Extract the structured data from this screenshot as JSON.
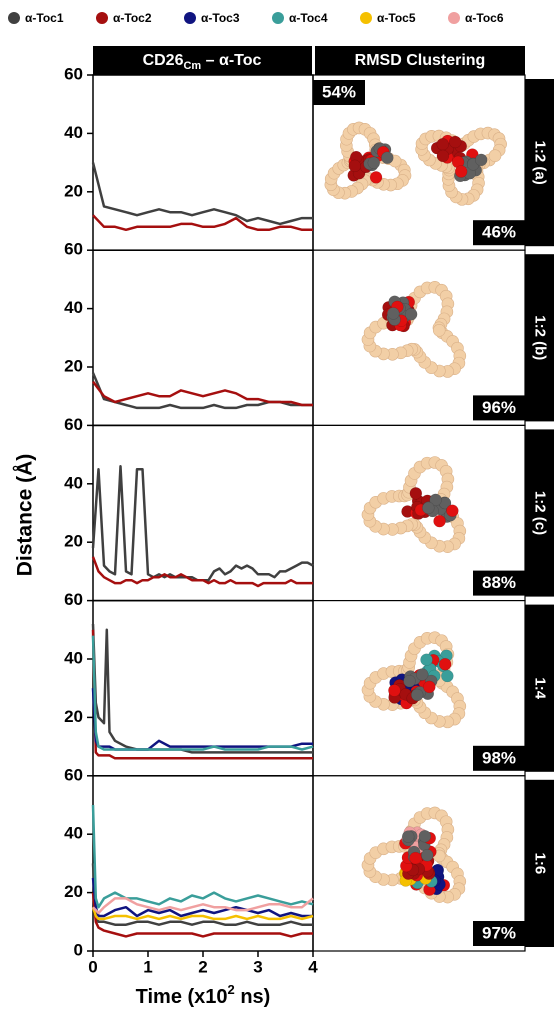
{
  "figure": {
    "header_left": {
      "main": "CD26",
      "sub": "Cm",
      "rest": " – α-Toc"
    },
    "header_right": "RMSD Clustering",
    "ylabel": "Distance (Å)",
    "xlabel": {
      "main": "Time (x10",
      "sup": "2",
      "rest": " ns)"
    }
  },
  "chart_data": [
    {
      "type": "line",
      "ratio": "1:2 (a)",
      "clusters": [
        "54%",
        "46%"
      ],
      "x": [
        0,
        0.2,
        0.4,
        0.6,
        0.8,
        1.0,
        1.2,
        1.4,
        1.6,
        1.8,
        2.0,
        2.2,
        2.4,
        2.6,
        2.8,
        3.0,
        3.2,
        3.4,
        3.6,
        3.8,
        4.0
      ],
      "xlim": [
        0,
        4
      ],
      "ylim": [
        0,
        60
      ],
      "yticks": [
        20,
        40,
        60
      ],
      "series": [
        {
          "name": "α-Toc1",
          "color": "#404040",
          "values": [
            30,
            15,
            14,
            13,
            12,
            13,
            14,
            13,
            13,
            12,
            13,
            14,
            13,
            12,
            10,
            11,
            10,
            9,
            10,
            11,
            11
          ]
        },
        {
          "name": "α-Toc2",
          "color": "#a50f0f",
          "values": [
            12,
            8,
            8,
            7,
            8,
            8,
            8,
            8,
            9,
            9,
            8,
            8,
            9,
            11,
            8,
            7,
            7,
            8,
            8,
            7,
            7
          ]
        }
      ]
    },
    {
      "type": "line",
      "ratio": "1:2 (b)",
      "clusters": [
        "96%"
      ],
      "x": [
        0,
        0.2,
        0.4,
        0.6,
        0.8,
        1.0,
        1.2,
        1.4,
        1.6,
        1.8,
        2.0,
        2.2,
        2.4,
        2.6,
        2.8,
        3.0,
        3.2,
        3.4,
        3.6,
        3.8,
        4.0
      ],
      "xlim": [
        0,
        4
      ],
      "ylim": [
        0,
        60
      ],
      "yticks": [
        20,
        40,
        60
      ],
      "series": [
        {
          "name": "α-Toc1",
          "color": "#404040",
          "values": [
            18,
            9,
            8,
            7,
            6,
            6,
            6,
            7,
            6,
            6,
            6,
            7,
            6,
            6,
            7,
            7,
            8,
            8,
            7,
            7,
            7
          ]
        },
        {
          "name": "α-Toc2",
          "color": "#a50f0f",
          "values": [
            15,
            10,
            8,
            9,
            10,
            11,
            10,
            10,
            12,
            11,
            10,
            11,
            12,
            11,
            9,
            9,
            8,
            8,
            8,
            7,
            7
          ]
        }
      ]
    },
    {
      "type": "line",
      "ratio": "1:2 (c)",
      "clusters": [
        "88%"
      ],
      "x": [
        0,
        0.1,
        0.2,
        0.3,
        0.4,
        0.5,
        0.6,
        0.7,
        0.8,
        0.9,
        1.0,
        1.1,
        1.2,
        1.3,
        1.4,
        1.5,
        1.6,
        1.7,
        1.8,
        1.9,
        2.0,
        2.1,
        2.2,
        2.3,
        2.4,
        2.5,
        2.6,
        2.7,
        2.8,
        2.9,
        3.0,
        3.1,
        3.2,
        3.3,
        3.4,
        3.5,
        3.6,
        3.7,
        3.8,
        3.9,
        4.0
      ],
      "xlim": [
        0,
        4
      ],
      "ylim": [
        0,
        60
      ],
      "yticks": [
        20,
        40,
        60
      ],
      "series": [
        {
          "name": "α-Toc1",
          "color": "#404040",
          "values": [
            18,
            45,
            12,
            10,
            9,
            46,
            10,
            9,
            45,
            45,
            9,
            8,
            9,
            8,
            9,
            8,
            8,
            8,
            8,
            7,
            7,
            7,
            10,
            11,
            9,
            10,
            12,
            11,
            12,
            11,
            9,
            9,
            9,
            8,
            10,
            10,
            11,
            12,
            13,
            13,
            12
          ]
        },
        {
          "name": "α-Toc2",
          "color": "#a50f0f",
          "values": [
            15,
            10,
            8,
            7,
            6,
            6,
            7,
            7,
            6,
            7,
            7,
            8,
            8,
            9,
            8,
            8,
            9,
            8,
            7,
            7,
            7,
            6,
            7,
            6,
            6,
            7,
            6,
            6,
            6,
            6,
            5,
            6,
            6,
            6,
            6,
            6,
            7,
            6,
            6,
            6,
            6
          ]
        }
      ]
    },
    {
      "type": "line",
      "ratio": "1:4",
      "clusters": [
        "98%"
      ],
      "x": [
        0,
        0.05,
        0.1,
        0.2,
        0.25,
        0.3,
        0.4,
        0.6,
        0.8,
        1.0,
        1.2,
        1.4,
        1.6,
        1.8,
        2.0,
        2.2,
        2.4,
        2.6,
        2.8,
        3.0,
        3.2,
        3.4,
        3.6,
        3.8,
        4.0
      ],
      "xlim": [
        0,
        4
      ],
      "ylim": [
        0,
        60
      ],
      "yticks": [
        20,
        40,
        60
      ],
      "series": [
        {
          "name": "α-Toc1",
          "color": "#404040",
          "values": [
            52,
            25,
            20,
            18,
            50,
            15,
            12,
            10,
            9,
            9,
            9,
            9,
            9,
            8,
            8,
            8,
            8,
            8,
            8,
            8,
            8,
            8,
            8,
            8,
            8
          ]
        },
        {
          "name": "α-Toc2",
          "color": "#a50f0f",
          "values": [
            50,
            8,
            7,
            7,
            7,
            7,
            6,
            6,
            6,
            6,
            6,
            6,
            6,
            6,
            6,
            6,
            6,
            6,
            6,
            6,
            6,
            6,
            6,
            6,
            6
          ]
        },
        {
          "name": "α-Toc3",
          "color": "#101480",
          "values": [
            30,
            12,
            10,
            10,
            10,
            10,
            9,
            9,
            9,
            9,
            12,
            10,
            10,
            10,
            10,
            10,
            10,
            10,
            10,
            10,
            10,
            10,
            10,
            11,
            11
          ]
        },
        {
          "name": "α-Toc4",
          "color": "#3a9e9a",
          "values": [
            48,
            15,
            10,
            9,
            9,
            9,
            9,
            9,
            9,
            9,
            9,
            9,
            9,
            9,
            9,
            10,
            9,
            9,
            9,
            9,
            10,
            10,
            10,
            9,
            10
          ]
        }
      ]
    },
    {
      "type": "line",
      "ratio": "1:6",
      "clusters": [
        "97%"
      ],
      "x": [
        0,
        0.05,
        0.1,
        0.2,
        0.4,
        0.6,
        0.8,
        1.0,
        1.2,
        1.4,
        1.6,
        1.8,
        2.0,
        2.2,
        2.4,
        2.6,
        2.8,
        3.0,
        3.2,
        3.4,
        3.6,
        3.8,
        4.0
      ],
      "xlim": [
        0,
        4
      ],
      "ylim": [
        0,
        60
      ],
      "yticks": [
        0,
        20,
        40,
        60
      ],
      "xticks": [
        0,
        1,
        2,
        3,
        4
      ],
      "series": [
        {
          "name": "α-Toc1",
          "color": "#404040",
          "values": [
            30,
            12,
            10,
            10,
            9,
            9,
            10,
            10,
            9,
            10,
            10,
            9,
            10,
            10,
            9,
            9,
            10,
            9,
            9,
            9,
            10,
            9,
            9
          ]
        },
        {
          "name": "α-Toc2",
          "color": "#a50f0f",
          "values": [
            20,
            10,
            8,
            7,
            6,
            5,
            6,
            6,
            6,
            6,
            6,
            6,
            5,
            6,
            6,
            6,
            6,
            6,
            6,
            6,
            5,
            6,
            6
          ]
        },
        {
          "name": "α-Toc3",
          "color": "#101480",
          "values": [
            25,
            15,
            12,
            12,
            14,
            15,
            12,
            14,
            13,
            14,
            12,
            13,
            14,
            13,
            14,
            15,
            14,
            13,
            14,
            12,
            13,
            12,
            12
          ]
        },
        {
          "name": "α-Toc4",
          "color": "#3a9e9a",
          "values": [
            50,
            18,
            15,
            18,
            20,
            18,
            18,
            17,
            16,
            18,
            17,
            19,
            18,
            20,
            18,
            17,
            18,
            19,
            18,
            17,
            16,
            17,
            16
          ]
        },
        {
          "name": "α-Toc5",
          "color": "#f5c000",
          "values": [
            15,
            12,
            11,
            11,
            12,
            12,
            11,
            12,
            11,
            12,
            11,
            12,
            12,
            11,
            11,
            12,
            11,
            12,
            11,
            11,
            12,
            11,
            12
          ]
        },
        {
          "name": "α-Toc6",
          "color": "#f0a0a0",
          "values": [
            15,
            14,
            13,
            15,
            18,
            18,
            16,
            15,
            14,
            15,
            14,
            15,
            16,
            15,
            15,
            14,
            14,
            15,
            16,
            16,
            15,
            15,
            18
          ]
        }
      ]
    }
  ]
}
